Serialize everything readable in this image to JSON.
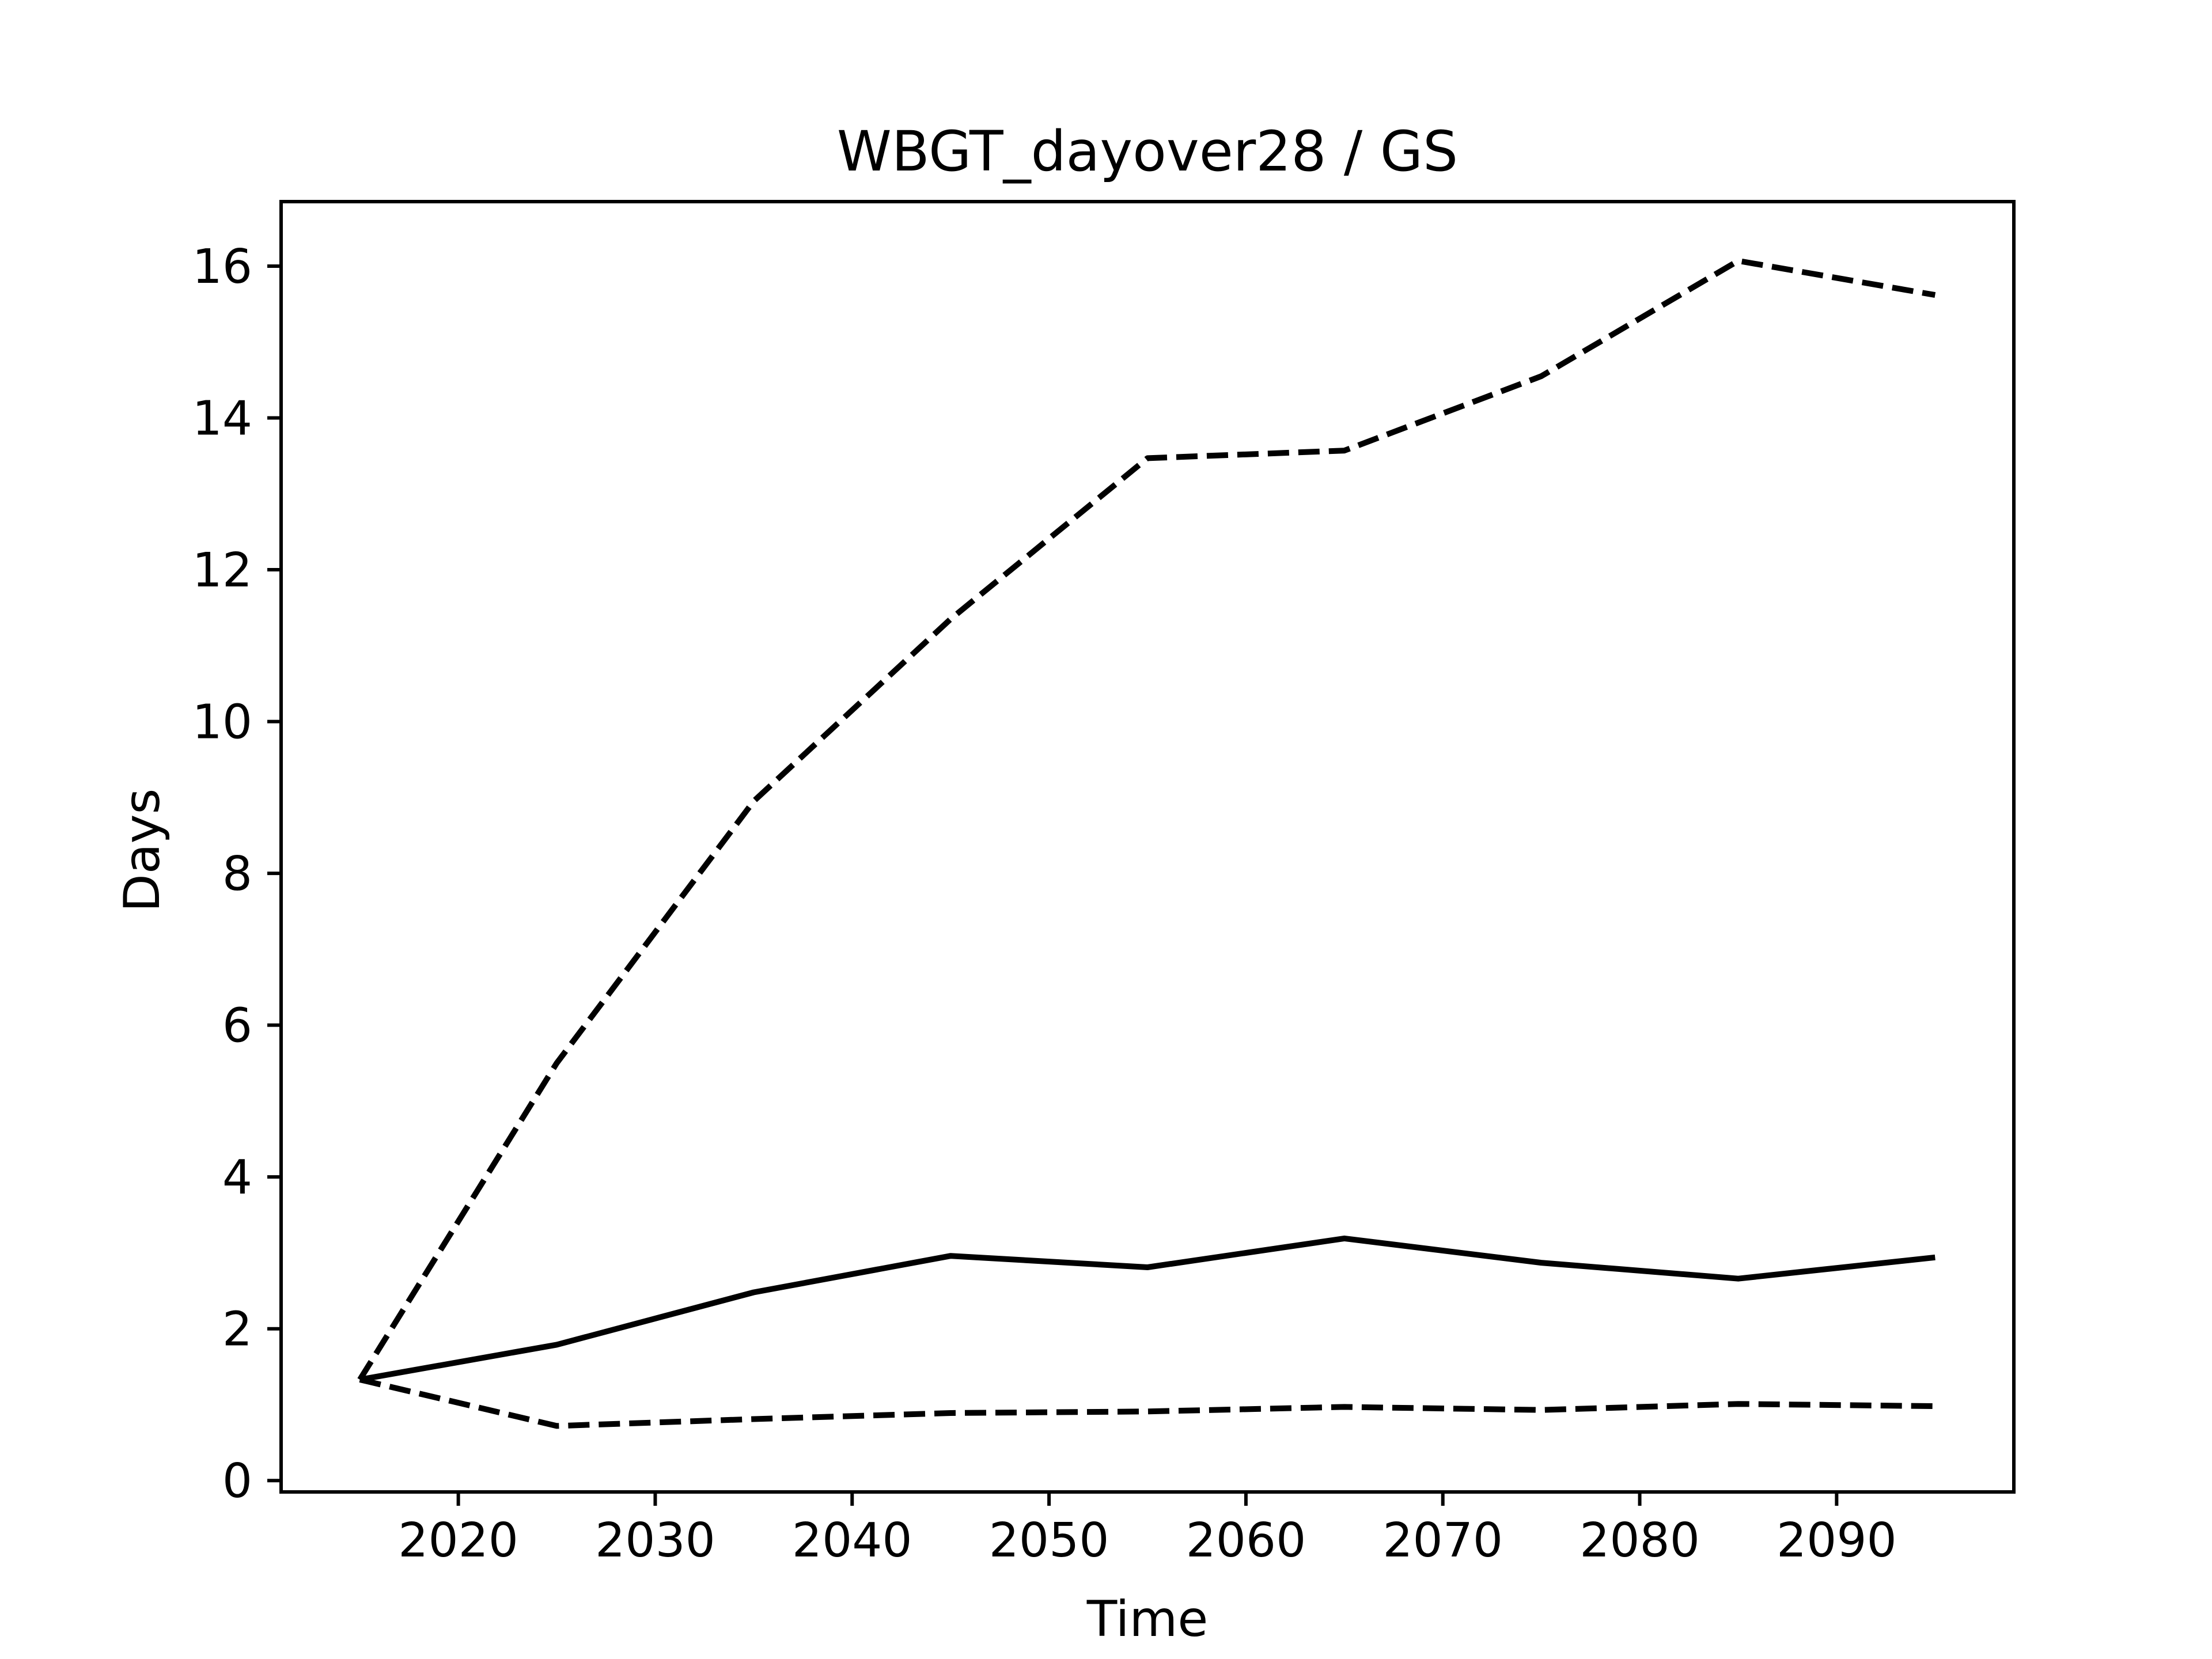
{
  "chart_data": {
    "type": "line",
    "title": "WBGT_dayover28 / GS",
    "xlabel": "Time",
    "ylabel": "Days",
    "xlim": [
      2011,
      2099
    ],
    "ylim": [
      -0.15,
      16.85
    ],
    "xticks": [
      2020,
      2030,
      2040,
      2050,
      2060,
      2070,
      2080,
      2090
    ],
    "yticks": [
      0,
      2,
      4,
      6,
      8,
      10,
      12,
      14,
      16
    ],
    "grid": false,
    "legend": "none",
    "colors": {
      "line": "#000000",
      "frame": "#000000",
      "background": "#ffffff"
    },
    "x": [
      2015,
      2025,
      2035,
      2045,
      2055,
      2065,
      2075,
      2085,
      2095
    ],
    "series": [
      {
        "style": "dashed",
        "values": [
          1.33,
          5.5,
          8.95,
          11.35,
          13.47,
          13.57,
          14.55,
          16.07,
          15.62
        ]
      },
      {
        "style": "solid",
        "values": [
          1.33,
          1.79,
          2.48,
          2.96,
          2.81,
          3.19,
          2.87,
          2.66,
          2.94
        ]
      },
      {
        "style": "dashed",
        "values": [
          1.33,
          0.72,
          0.81,
          0.89,
          0.91,
          0.97,
          0.93,
          1.01,
          0.98
        ]
      }
    ]
  }
}
